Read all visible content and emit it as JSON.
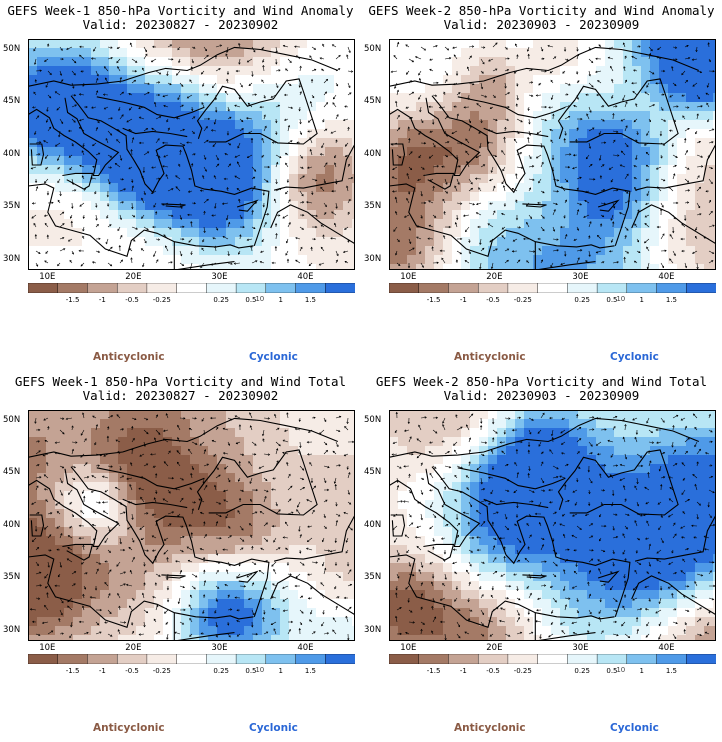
{
  "panels": [
    {
      "title": "GEFS Week-1 850-hPa Vorticity and Wind Anomaly",
      "valid": "Valid: 20230827 - 20230902",
      "kind": "anomaly"
    },
    {
      "title": "GEFS Week-2 850-hPa Vorticity and Wind Anomaly",
      "valid": "Valid: 20230903 - 20230909",
      "kind": "anomaly"
    },
    {
      "title": "GEFS Week-1 850-hPa Vorticity and Wind Total",
      "valid": "Valid: 20230827 - 20230902",
      "kind": "total"
    },
    {
      "title": "GEFS Week-2 850-hPa Vorticity and Wind Total",
      "valid": "Valid: 20230903 - 20230909",
      "kind": "total"
    }
  ],
  "lat_labels": [
    "50N",
    "45N",
    "40N",
    "35N",
    "30N"
  ],
  "lon_labels": [
    "10E",
    "20E",
    "30E",
    "40E"
  ],
  "colorbar": {
    "labels": [
      "-1.5",
      "-1",
      "-0.5",
      "-0.25",
      "0.25",
      "0.5",
      "1",
      "1.5"
    ],
    "scale_note": "10",
    "colors": [
      "#8b5d48",
      "#a47a66",
      "#c4a394",
      "#e3cec4",
      "#f6ece6",
      "#ffffff",
      "#e6f6fb",
      "#b8e6f5",
      "#7ec1ef",
      "#4f9ae8",
      "#2a6fdb"
    ]
  },
  "legend": {
    "anticyclonic": "Anticyclonic",
    "cyclonic": "Cyclonic"
  }
}
